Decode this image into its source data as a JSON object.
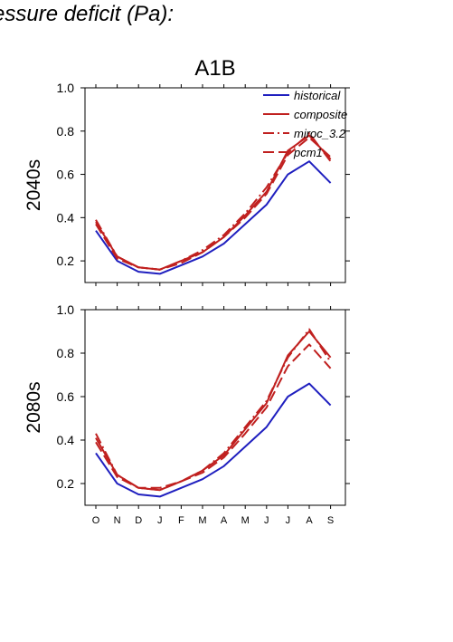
{
  "header": {
    "text": "essure deficit (Pa):"
  },
  "chart_data": [
    {
      "type": "line",
      "title": "A1B",
      "ylabel": "2040s",
      "xlabel": "",
      "categories": [
        "O",
        "N",
        "D",
        "J",
        "F",
        "M",
        "A",
        "M",
        "J",
        "J",
        "A",
        "S"
      ],
      "ylim": [
        0.1,
        1.0
      ],
      "yticks": [
        "0.2",
        "0.4",
        "0.6",
        "0.8",
        "1.0"
      ],
      "legend": {
        "placement": "top-right"
      },
      "series": [
        {
          "name": "historical",
          "color": "#1f1fbf",
          "style": "solid",
          "values": [
            0.34,
            0.2,
            0.15,
            0.14,
            0.18,
            0.22,
            0.28,
            0.37,
            0.46,
            0.6,
            0.66,
            0.56
          ]
        },
        {
          "name": "composite",
          "color": "#c0201f",
          "style": "solid",
          "values": [
            0.38,
            0.22,
            0.17,
            0.16,
            0.2,
            0.24,
            0.31,
            0.41,
            0.52,
            0.71,
            0.78,
            0.67
          ]
        },
        {
          "name": "miroc_3.2",
          "color": "#c0201f",
          "style": "dashdot",
          "values": [
            0.39,
            0.22,
            0.17,
            0.16,
            0.2,
            0.25,
            0.32,
            0.42,
            0.54,
            0.7,
            0.79,
            0.66
          ]
        },
        {
          "name": "pcm1",
          "color": "#c0201f",
          "style": "dash",
          "values": [
            0.37,
            0.21,
            0.17,
            0.16,
            0.19,
            0.24,
            0.31,
            0.4,
            0.51,
            0.69,
            0.77,
            0.68
          ]
        }
      ]
    },
    {
      "type": "line",
      "title": "",
      "ylabel": "2080s",
      "xlabel": "",
      "categories": [
        "O",
        "N",
        "D",
        "J",
        "F",
        "M",
        "A",
        "M",
        "J",
        "J",
        "A",
        "S"
      ],
      "ylim": [
        0.1,
        1.0
      ],
      "yticks": [
        "0.2",
        "0.4",
        "0.6",
        "0.8",
        "1.0"
      ],
      "series": [
        {
          "name": "historical",
          "color": "#1f1fbf",
          "style": "solid",
          "values": [
            0.34,
            0.2,
            0.15,
            0.14,
            0.18,
            0.22,
            0.28,
            0.37,
            0.46,
            0.6,
            0.66,
            0.56
          ]
        },
        {
          "name": "composite",
          "color": "#c0201f",
          "style": "solid",
          "values": [
            0.41,
            0.24,
            0.18,
            0.17,
            0.21,
            0.26,
            0.33,
            0.45,
            0.57,
            0.79,
            0.9,
            0.78
          ]
        },
        {
          "name": "miroc_3.2",
          "color": "#c0201f",
          "style": "dashdot",
          "values": [
            0.43,
            0.24,
            0.18,
            0.17,
            0.21,
            0.26,
            0.34,
            0.46,
            0.58,
            0.78,
            0.91,
            0.76
          ]
        },
        {
          "name": "pcm1",
          "color": "#c0201f",
          "style": "dash",
          "values": [
            0.39,
            0.23,
            0.18,
            0.18,
            0.21,
            0.25,
            0.32,
            0.43,
            0.55,
            0.74,
            0.84,
            0.73
          ]
        }
      ]
    }
  ]
}
